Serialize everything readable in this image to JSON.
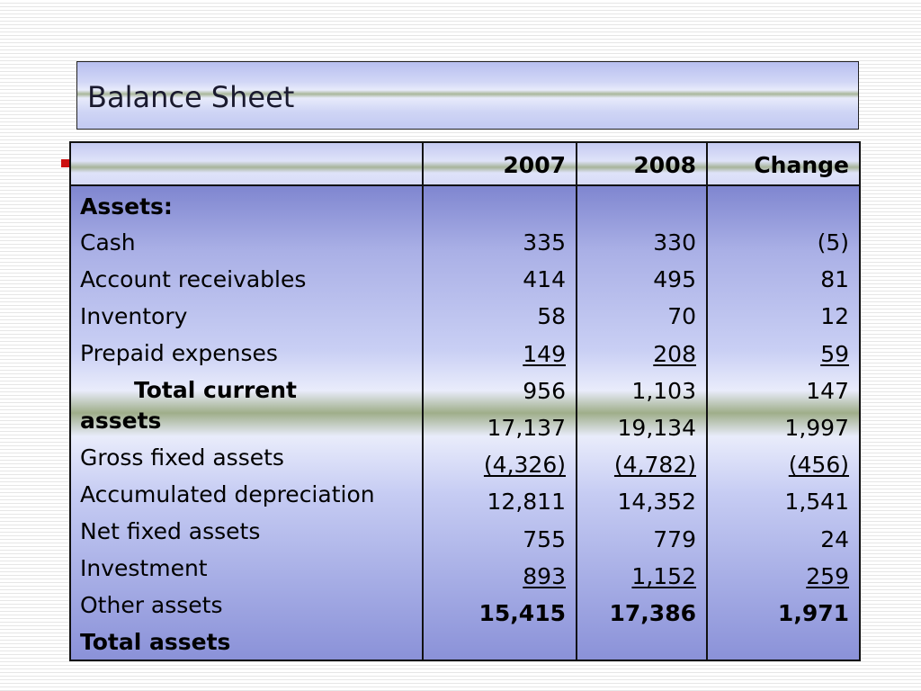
{
  "title": "Balance Sheet",
  "table": {
    "headers": [
      "",
      "2007",
      "2008",
      "Change"
    ],
    "labels": [
      {
        "text": "Assets:",
        "bold": true
      },
      {
        "text": "Cash"
      },
      {
        "text": "Account receivables"
      },
      {
        "text": "Inventory"
      },
      {
        "text": "Prepaid expenses"
      },
      {
        "text": "Total current",
        "bold": true
      },
      {
        "text": "assets",
        "bold": true
      },
      {
        "text": "Gross fixed assets"
      },
      {
        "text": "Accumulated depreciation"
      },
      {
        "text": "Net fixed assets"
      },
      {
        "text": "Investment"
      },
      {
        "text": "Other assets"
      },
      {
        "text": "Total assets",
        "bold": true
      }
    ],
    "rows": [
      {
        "y2007": "335",
        "y2008": "330",
        "change": "(5)"
      },
      {
        "y2007": "414",
        "y2008": "495",
        "change": "81"
      },
      {
        "y2007": "58",
        "y2008": "70",
        "change": "12"
      },
      {
        "y2007": "149",
        "y2008": "208",
        "change": "59",
        "underline": true
      },
      {
        "y2007": "956",
        "y2008": "1,103",
        "change": "147"
      },
      {
        "y2007": "17,137",
        "y2008": "19,134",
        "change": "1,997"
      },
      {
        "y2007": "(4,326)",
        "y2008": "(4,782)",
        "change": "(456)",
        "underline": true
      },
      {
        "y2007": "12,811",
        "y2008": "14,352",
        "change": "1,541"
      },
      {
        "y2007": "755",
        "y2008": "779",
        "change": "24"
      },
      {
        "y2007": "893",
        "y2008": "1,152",
        "change": "259",
        "underline": true
      },
      {
        "y2007": "15,415",
        "y2008": "17,386",
        "change": "1,971",
        "bold": true
      }
    ]
  },
  "colors": {
    "bullet": "#cc1111",
    "text": "#000000"
  }
}
